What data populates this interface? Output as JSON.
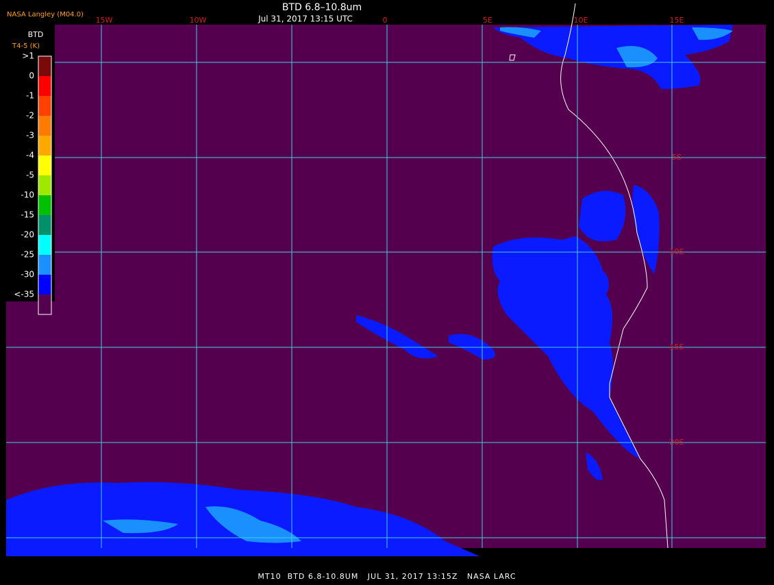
{
  "header": {
    "title": "BTD 6.8–10.8um",
    "subtitle": "Jul 31, 2017 13:15 UTC",
    "credit": "NASA Langley (M04.0)"
  },
  "map": {
    "lon_labels": [
      "15W",
      "10W",
      "0",
      "5E",
      "10E",
      "15E"
    ],
    "lat_labels": [
      "5S",
      "10S",
      "15S",
      "20S"
    ]
  },
  "legend": {
    "title": "BTD",
    "units": "T4-5 (K)",
    "labels": [
      ">1",
      "0",
      "-1",
      "-2",
      "-3",
      "-4",
      "-5",
      "-10",
      "-15",
      "-20",
      "-25",
      "-30",
      "<-35"
    ],
    "colors": [
      "#7a0a0a",
      "#ff0000",
      "#ff4000",
      "#ff7a00",
      "#ffa800",
      "#ffff00",
      "#a0e800",
      "#00c000",
      "#00906a",
      "#00ffff",
      "#1a90ff",
      "#0000ff",
      "#55004f"
    ]
  },
  "footer": {
    "text": "MT10  BTD 6.8-10.8UM   JUL 31, 2017 13:15Z   NASA LARC"
  }
}
